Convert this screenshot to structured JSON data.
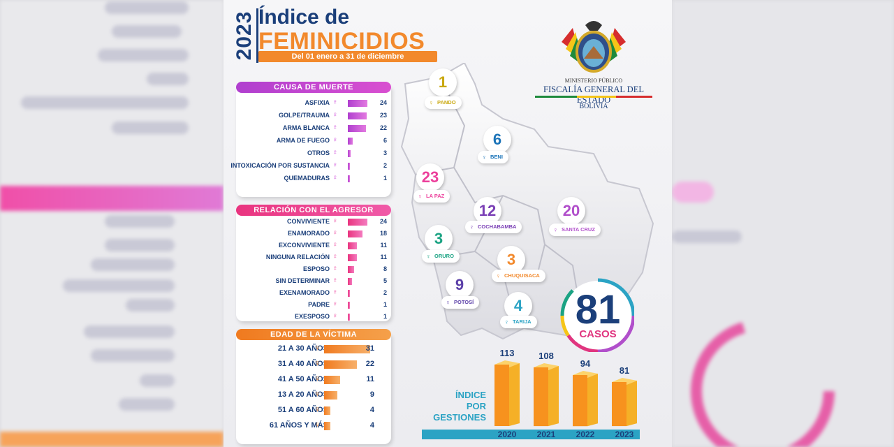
{
  "header": {
    "year": "2023",
    "title_line1": "Índice de",
    "title_line2": "FEMINICIDIOS",
    "period": "Del 01 enero a 31 de diciembre"
  },
  "logo": {
    "line1": "MINISTERIO PÚBLICO",
    "line2": "FISCALÍA GENERAL DEL ESTADO",
    "line3": "BOLIVIA"
  },
  "colors": {
    "navy": "#1b3f7a",
    "orange": "#f2892c",
    "magenta": "#c93ad6",
    "pink": "#ec3f9b",
    "teal": "#2ba3c4"
  },
  "total": {
    "value": "81",
    "label": "CASOS"
  },
  "chart_data": [
    {
      "type": "bar",
      "title": "CAUSA DE MUERTE",
      "categories": [
        "ASFIXIA",
        "GOLPE/TRAUMA",
        "ARMA BLANCA",
        "ARMA DE FUEGO",
        "OTROS",
        "INTOXICACIÓN POR SUSTANCIA",
        "QUEMADURAS"
      ],
      "values": [
        24,
        23,
        22,
        6,
        3,
        2,
        1
      ]
    },
    {
      "type": "bar",
      "title": "RELACIÓN CON EL AGRESOR",
      "categories": [
        "CONVIVIENTE",
        "ENAMORADO",
        "EXCONVIVIENTE",
        "NINGUNA RELACIÓN",
        "ESPOSO",
        "SIN DETERMINAR",
        "EXENAMORADO",
        "PADRE",
        "EXESPOSO"
      ],
      "values": [
        24,
        18,
        11,
        11,
        8,
        5,
        2,
        1,
        1
      ]
    },
    {
      "type": "bar",
      "title": "EDAD DE LA VÍCTIMA",
      "categories": [
        "21 A 30 AÑOS",
        "31 A 40 AÑOS",
        "41 A 50 AÑOS",
        "13 A 20 AÑOS",
        "51 A 60 AÑOS",
        "61 AÑOS Y MÁS"
      ],
      "values": [
        31,
        22,
        11,
        9,
        4,
        4
      ]
    },
    {
      "type": "bar",
      "title": "ÍNDICE POR GESTIONES",
      "categories": [
        "2020",
        "2021",
        "2022",
        "2023"
      ],
      "values": [
        113,
        108,
        94,
        81
      ]
    },
    {
      "type": "table",
      "title": "",
      "departments": [
        {
          "name": "PANDO",
          "value": 1
        },
        {
          "name": "BENI",
          "value": 6
        },
        {
          "name": "LA PAZ",
          "value": 23
        },
        {
          "name": "COCHABAMBA",
          "value": 12
        },
        {
          "name": "SANTA CRUZ",
          "value": 20
        },
        {
          "name": "ORURO",
          "value": 3
        },
        {
          "name": "CHUQUISACA",
          "value": 3
        },
        {
          "name": "POTOSÍ",
          "value": 9
        },
        {
          "name": "TARIJA",
          "value": 4
        }
      ]
    }
  ],
  "dept_colors": [
    "#c9a80f",
    "#1a73b8",
    "#ec3f9b",
    "#7a3fb5",
    "#b14fcb",
    "#1ba383",
    "#f2892c",
    "#5b3fa8",
    "#2ba3c4"
  ],
  "gestiones_title": "ÍNDICE POR GESTIONES"
}
